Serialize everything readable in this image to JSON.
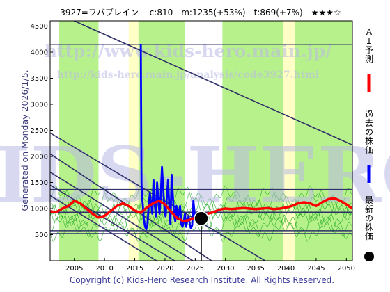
{
  "chart_data": {
    "type": "line",
    "title": "3927=フバブレイン　 c:810　m:1235(+53%)　t:869(+7%)　★★★☆",
    "generated_text": "Generated on Monday 2026/1/5.",
    "copyright": "Copyright (c) Kids-Hero Research Institute. All Rights Reserved.",
    "watermark_url": "http://www.kids-hero.main.jp/",
    "watermark_url2": "http://kids-hero.main.jp/analysis/code3927.html",
    "watermark_big": "KIDS-HERO",
    "xlim": [
      2001.0,
      2051.0
    ],
    "ylim": [
      0,
      4600
    ],
    "x_ticks": [
      2005,
      2010,
      2015,
      2020,
      2025,
      2030,
      2035,
      2040,
      2045,
      2050
    ],
    "y_ticks": [
      500,
      1000,
      1500,
      2000,
      2500,
      3000,
      3500,
      4000,
      4500
    ],
    "current_point": {
      "x": 2026.0,
      "y": 810
    },
    "legend": [
      {
        "name": "ＡＩ予測",
        "color": "#ff0000"
      },
      {
        "name": "過去の株価",
        "color": "#0000ff"
      },
      {
        "name": "最新の株価",
        "color": "#000000"
      }
    ],
    "horizontal_lines": [
      4150,
      1365,
      930,
      575,
      520
    ],
    "trend_lines": [
      {
        "x": [
          2004.0,
          2051.0
        ],
        "y": [
          4650,
          2220
        ]
      },
      {
        "x": [
          2001.0,
          2038.0
        ],
        "y": [
          2450,
          -100
        ]
      },
      {
        "x": [
          2001.0,
          2029.0
        ],
        "y": [
          2050,
          -100
        ]
      },
      {
        "x": [
          2001.0,
          2026.0
        ],
        "y": [
          1700,
          -100
        ]
      },
      {
        "x": [
          2001.0,
          2023.0
        ],
        "y": [
          1450,
          -100
        ]
      },
      {
        "x": [
          2001.0,
          2020.0
        ],
        "y": [
          1250,
          -100
        ]
      }
    ],
    "green_bands": [
      [
        2002.5,
        2009.0
      ],
      [
        2015.6,
        2023.3
      ],
      [
        2029.5,
        2039.5
      ],
      [
        2041.5,
        2051.0
      ]
    ],
    "series": [
      {
        "name": "過去の株価",
        "color": "#0000ff",
        "x": [
          2016.0,
          2016.05,
          2016.12,
          2016.2,
          2016.35,
          2016.5,
          2016.7,
          2016.9,
          2017.1,
          2017.3,
          2017.5,
          2017.7,
          2017.9,
          2018.1,
          2018.3,
          2018.5,
          2018.7,
          2018.9,
          2019.1,
          2019.3,
          2019.5,
          2019.7,
          2019.9,
          2020.1,
          2020.3,
          2020.5,
          2020.7,
          2020.9,
          2021.1,
          2021.3,
          2021.5,
          2021.7,
          2021.9,
          2022.1,
          2022.3,
          2022.5,
          2022.7,
          2022.9,
          2023.1,
          2023.3,
          2023.5,
          2023.7,
          2023.9,
          2024.1,
          2024.3,
          2024.5,
          2024.7,
          2024.9,
          2025.1,
          2025.3,
          2025.6,
          2025.9,
          2026.0
        ],
        "y": [
          4150,
          3000,
          1500,
          1250,
          1050,
          800,
          650,
          600,
          700,
          1050,
          1300,
          1100,
          900,
          1550,
          1100,
          850,
          1500,
          1150,
          900,
          1250,
          1800,
          1400,
          1000,
          850,
          1200,
          1550,
          1050,
          700,
          1650,
          1250,
          900,
          750,
          1050,
          800,
          900,
          1050,
          700,
          650,
          750,
          900,
          650,
          780,
          850,
          700,
          620,
          680,
          1150,
          900,
          760,
          820,
          780,
          830,
          810
        ]
      },
      {
        "name": "ＡＩ予測",
        "color": "#ff0000",
        "x": [
          2001.0,
          2002.0,
          2003.0,
          2004.0,
          2005.0,
          2006.0,
          2007.0,
          2008.0,
          2009.0,
          2010.0,
          2011.0,
          2012.0,
          2013.0,
          2014.0,
          2015.0,
          2016.0,
          2017.0,
          2018.0,
          2019.0,
          2020.0,
          2021.0,
          2022.0,
          2023.0,
          2024.0,
          2025.0,
          2026.0,
          2027.0,
          2028.0,
          2029.0,
          2030.0,
          2031.0,
          2032.0,
          2033.0,
          2034.0,
          2035.0,
          2036.0,
          2037.0,
          2038.0,
          2039.0,
          2040.0,
          2041.0,
          2042.0,
          2043.0,
          2044.0,
          2045.0,
          2046.0,
          2047.0,
          2048.0,
          2049.0,
          2050.0,
          2051.0
        ],
        "y": [
          950,
          930,
          1000,
          1050,
          1150,
          1100,
          1000,
          900,
          830,
          860,
          950,
          1050,
          1100,
          1050,
          960,
          920,
          1020,
          1100,
          1150,
          1080,
          940,
          820,
          760,
          780,
          830,
          880,
          900,
          930,
          980,
          1000,
          990,
          1000,
          1010,
          1000,
          990,
          1000,
          1010,
          990,
          1000,
          1020,
          1050,
          1100,
          1120,
          1100,
          1050,
          1120,
          1180,
          1200,
          1150,
          1080,
          1000
        ]
      }
    ]
  }
}
